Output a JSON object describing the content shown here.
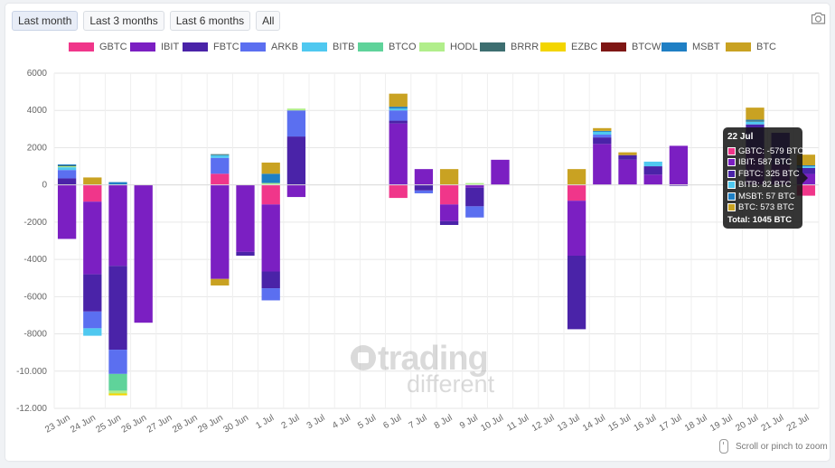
{
  "filters": [
    {
      "label": "Last month",
      "active": true
    },
    {
      "label": "Last 3 months",
      "active": false
    },
    {
      "label": "Last 6 months",
      "active": false
    },
    {
      "label": "All",
      "active": false
    }
  ],
  "toolbar": {
    "camera_icon": "camera-icon"
  },
  "zoom_hint": "Scroll or pinch to zoom",
  "watermark": {
    "line1": "trading",
    "line2": "different"
  },
  "tooltip": {
    "title": "22 Jul",
    "rows": [
      {
        "name": "GBTC",
        "text": "GBTC: -579 BTC"
      },
      {
        "name": "IBIT",
        "text": "IBIT: 587 BTC"
      },
      {
        "name": "FBTC",
        "text": "FBTC: 325 BTC"
      },
      {
        "name": "BITB",
        "text": "BITB: 82 BTC"
      },
      {
        "name": "MSBT",
        "text": "MSBT: 57 BTC"
      },
      {
        "name": "BTC",
        "text": "BTC: 573 BTC"
      }
    ],
    "total": "Total: 1045 BTC"
  },
  "chart_data": {
    "type": "bar",
    "stacked": true,
    "ylim": [
      -12000,
      6000
    ],
    "yticks": [
      6000,
      4000,
      2000,
      0,
      -2000,
      -4000,
      -6000,
      -8000,
      -10000,
      -12000
    ],
    "ytick_labels": [
      "6000",
      "4000",
      "2000",
      "0",
      "-2000",
      "-4000",
      "-6000",
      "-8000",
      "-10.000",
      "-12.000"
    ],
    "grid": true,
    "legend_position": "top",
    "categories": [
      "23 Jun",
      "24 Jun",
      "25 Jun",
      "26 Jun",
      "27 Jun",
      "28 Jun",
      "29 Jun",
      "30 Jun",
      "1 Jul",
      "2 Jul",
      "3 Jul",
      "4 Jul",
      "5 Jul",
      "6 Jul",
      "7 Jul",
      "8 Jul",
      "9 Jul",
      "10 Jul",
      "11 Jul",
      "12 Jul",
      "13 Jul",
      "14 Jul",
      "15 Jul",
      "16 Jul",
      "17 Jul",
      "18 Jul",
      "19 Jul",
      "20 Jul",
      "21 Jul",
      "22 Jul"
    ],
    "series": [
      {
        "name": "GBTC",
        "color": "#f0368a",
        "values": [
          0,
          -900,
          0,
          0,
          0,
          0,
          600,
          0,
          -1050,
          0,
          0,
          0,
          0,
          -700,
          0,
          -1050,
          0,
          0,
          0,
          0,
          -850,
          0,
          0,
          0,
          0,
          0,
          0,
          0,
          0,
          -579
        ]
      },
      {
        "name": "IBIT",
        "color": "#7b1fc2",
        "values": [
          -2900,
          -3900,
          -4350,
          -7400,
          0,
          0,
          -5050,
          -3600,
          -3600,
          -650,
          0,
          0,
          0,
          3300,
          850,
          -900,
          -150,
          1350,
          0,
          0,
          -2950,
          2200,
          1350,
          550,
          2100,
          0,
          0,
          1900,
          1100,
          587
        ]
      },
      {
        "name": "FBTC",
        "color": "#4a23a8",
        "values": [
          350,
          -2000,
          -4500,
          0,
          0,
          0,
          0,
          -200,
          -900,
          2600,
          0,
          0,
          0,
          150,
          -300,
          -200,
          -1000,
          0,
          0,
          0,
          -3950,
          350,
          250,
          450,
          -50,
          0,
          0,
          1350,
          1700,
          325
        ]
      },
      {
        "name": "ARKB",
        "color": "#5b6ff0",
        "values": [
          450,
          -900,
          -1300,
          0,
          0,
          0,
          850,
          0,
          -650,
          1400,
          0,
          0,
          0,
          550,
          -150,
          0,
          -600,
          0,
          0,
          0,
          0,
          150,
          0,
          0,
          0,
          0,
          0,
          0,
          0,
          0
        ]
      },
      {
        "name": "BITB",
        "color": "#4fc8f0",
        "values": [
          150,
          -400,
          0,
          0,
          0,
          0,
          150,
          0,
          0,
          0,
          0,
          0,
          0,
          100,
          0,
          0,
          0,
          0,
          0,
          0,
          0,
          150,
          0,
          250,
          0,
          0,
          0,
          150,
          0,
          82
        ]
      },
      {
        "name": "BTCO",
        "color": "#5fd39a",
        "values": [
          0,
          0,
          -900,
          0,
          0,
          0,
          0,
          0,
          0,
          0,
          0,
          0,
          0,
          0,
          0,
          0,
          0,
          0,
          0,
          0,
          0,
          0,
          0,
          0,
          0,
          0,
          0,
          0,
          0,
          0
        ]
      },
      {
        "name": "HODL",
        "color": "#b1ee8b",
        "values": [
          50,
          0,
          -150,
          0,
          0,
          0,
          0,
          0,
          100,
          100,
          0,
          0,
          0,
          0,
          0,
          0,
          100,
          0,
          0,
          0,
          0,
          0,
          0,
          0,
          0,
          0,
          0,
          0,
          0,
          0
        ]
      },
      {
        "name": "BRRR",
        "color": "#3d6e70",
        "values": [
          50,
          0,
          0,
          0,
          0,
          0,
          50,
          0,
          0,
          0,
          0,
          0,
          0,
          0,
          0,
          0,
          0,
          0,
          0,
          0,
          0,
          0,
          0,
          0,
          0,
          0,
          0,
          50,
          0,
          0
        ]
      },
      {
        "name": "EZBC",
        "color": "#f3d500",
        "values": [
          0,
          0,
          -100,
          0,
          0,
          0,
          0,
          0,
          0,
          0,
          0,
          0,
          0,
          0,
          0,
          0,
          0,
          0,
          0,
          0,
          0,
          0,
          0,
          0,
          0,
          0,
          0,
          0,
          0,
          0
        ]
      },
      {
        "name": "BTCW",
        "color": "#7e1614",
        "values": [
          0,
          0,
          0,
          0,
          0,
          0,
          0,
          0,
          0,
          0,
          0,
          0,
          0,
          0,
          0,
          0,
          0,
          0,
          0,
          0,
          0,
          0,
          0,
          0,
          0,
          0,
          0,
          0,
          0,
          0
        ]
      },
      {
        "name": "MSBT",
        "color": "#1f7fc4",
        "values": [
          50,
          0,
          150,
          0,
          0,
          0,
          0,
          0,
          500,
          0,
          0,
          0,
          0,
          100,
          0,
          0,
          0,
          0,
          0,
          0,
          0,
          50,
          0,
          0,
          0,
          0,
          0,
          50,
          0,
          57
        ]
      },
      {
        "name": "BTC",
        "color": "#c9a222",
        "values": [
          0,
          400,
          0,
          0,
          0,
          0,
          -350,
          0,
          600,
          0,
          0,
          0,
          0,
          700,
          0,
          850,
          0,
          0,
          0,
          0,
          850,
          150,
          150,
          0,
          0,
          0,
          0,
          650,
          0,
          573
        ]
      }
    ]
  }
}
